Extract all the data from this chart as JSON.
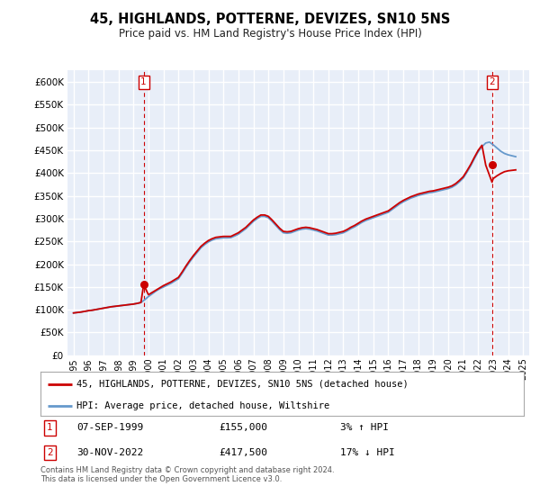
{
  "title": "45, HIGHLANDS, POTTERNE, DEVIZES, SN10 5NS",
  "subtitle": "Price paid vs. HM Land Registry's House Price Index (HPI)",
  "ylabel_ticks": [
    "£0",
    "£50K",
    "£100K",
    "£150K",
    "£200K",
    "£250K",
    "£300K",
    "£350K",
    "£400K",
    "£450K",
    "£500K",
    "£550K",
    "£600K"
  ],
  "ytick_values": [
    0,
    50000,
    100000,
    150000,
    200000,
    250000,
    300000,
    350000,
    400000,
    450000,
    500000,
    550000,
    600000
  ],
  "ylim": [
    0,
    625000
  ],
  "legend_label_red": "45, HIGHLANDS, POTTERNE, DEVIZES, SN10 5NS (detached house)",
  "legend_label_blue": "HPI: Average price, detached house, Wiltshire",
  "annotation1_label": "1",
  "annotation1_date": "07-SEP-1999",
  "annotation1_price": "£155,000",
  "annotation1_hpi": "3% ↑ HPI",
  "annotation2_label": "2",
  "annotation2_date": "30-NOV-2022",
  "annotation2_price": "£417,500",
  "annotation2_hpi": "17% ↓ HPI",
  "footer": "Contains HM Land Registry data © Crown copyright and database right 2024.\nThis data is licensed under the Open Government Licence v3.0.",
  "red_color": "#cc0000",
  "blue_color": "#6699cc",
  "bg_color": "#e8eef8",
  "grid_color": "#ffffff",
  "marker1_x": 1999.68,
  "marker1_y": 155000,
  "marker2_x": 2022.92,
  "marker2_y": 417500,
  "vline1_x": 1999.68,
  "vline2_x": 2022.92,
  "xlim_left": 1994.6,
  "xlim_right": 2025.4,
  "hpi_years": [
    1995.0,
    1995.25,
    1995.5,
    1995.75,
    1996.0,
    1996.25,
    1996.5,
    1996.75,
    1997.0,
    1997.25,
    1997.5,
    1997.75,
    1998.0,
    1998.25,
    1998.5,
    1998.75,
    1999.0,
    1999.25,
    1999.5,
    1999.75,
    2000.0,
    2000.25,
    2000.5,
    2000.75,
    2001.0,
    2001.25,
    2001.5,
    2001.75,
    2002.0,
    2002.25,
    2002.5,
    2002.75,
    2003.0,
    2003.25,
    2003.5,
    2003.75,
    2004.0,
    2004.25,
    2004.5,
    2004.75,
    2005.0,
    2005.25,
    2005.5,
    2005.75,
    2006.0,
    2006.25,
    2006.5,
    2006.75,
    2007.0,
    2007.25,
    2007.5,
    2007.75,
    2008.0,
    2008.25,
    2008.5,
    2008.75,
    2009.0,
    2009.25,
    2009.5,
    2009.75,
    2010.0,
    2010.25,
    2010.5,
    2010.75,
    2011.0,
    2011.25,
    2011.5,
    2011.75,
    2012.0,
    2012.25,
    2012.5,
    2012.75,
    2013.0,
    2013.25,
    2013.5,
    2013.75,
    2014.0,
    2014.25,
    2014.5,
    2014.75,
    2015.0,
    2015.25,
    2015.5,
    2015.75,
    2016.0,
    2016.25,
    2016.5,
    2016.75,
    2017.0,
    2017.25,
    2017.5,
    2017.75,
    2018.0,
    2018.25,
    2018.5,
    2018.75,
    2019.0,
    2019.25,
    2019.5,
    2019.75,
    2020.0,
    2020.25,
    2020.5,
    2020.75,
    2021.0,
    2021.25,
    2021.5,
    2021.75,
    2022.0,
    2022.25,
    2022.5,
    2022.75,
    2023.0,
    2023.25,
    2023.5,
    2023.75,
    2024.0,
    2024.25,
    2024.5
  ],
  "hpi_values": [
    93000,
    94000,
    95000,
    96500,
    98000,
    99000,
    100500,
    102000,
    103500,
    105000,
    106500,
    107500,
    108500,
    109500,
    110500,
    111500,
    112500,
    114000,
    116000,
    122000,
    129000,
    135000,
    141000,
    146000,
    150000,
    154000,
    158000,
    163000,
    168000,
    180000,
    193000,
    205000,
    216000,
    226000,
    236000,
    243000,
    249000,
    253000,
    256000,
    257000,
    258000,
    258000,
    258500,
    262000,
    266000,
    272000,
    278000,
    286000,
    294000,
    300000,
    305000,
    305000,
    302000,
    294000,
    285000,
    276000,
    269000,
    268000,
    269000,
    272000,
    275000,
    277000,
    278000,
    277000,
    275000,
    273000,
    270000,
    267000,
    264000,
    264000,
    265000,
    267000,
    269000,
    273000,
    278000,
    282000,
    287000,
    292000,
    296000,
    299000,
    302000,
    305000,
    308000,
    311000,
    314000,
    320000,
    326000,
    332000,
    337000,
    341000,
    345000,
    348000,
    351000,
    353000,
    355000,
    357000,
    358000,
    360000,
    362000,
    364000,
    366000,
    369000,
    374000,
    381000,
    389000,
    402000,
    416000,
    432000,
    447000,
    458000,
    466000,
    468000,
    462000,
    455000,
    448000,
    443000,
    440000,
    438000,
    436000
  ],
  "red_years": [
    1995.0,
    1995.25,
    1995.5,
    1995.75,
    1996.0,
    1996.25,
    1996.5,
    1996.75,
    1997.0,
    1997.25,
    1997.5,
    1997.75,
    1998.0,
    1998.25,
    1998.5,
    1998.75,
    1999.0,
    1999.25,
    1999.5,
    1999.68,
    2000.0,
    2000.25,
    2000.5,
    2000.75,
    2001.0,
    2001.25,
    2001.5,
    2001.75,
    2002.0,
    2002.25,
    2002.5,
    2002.75,
    2003.0,
    2003.25,
    2003.5,
    2003.75,
    2004.0,
    2004.25,
    2004.5,
    2004.75,
    2005.0,
    2005.25,
    2005.5,
    2005.75,
    2006.0,
    2006.25,
    2006.5,
    2006.75,
    2007.0,
    2007.25,
    2007.5,
    2007.75,
    2008.0,
    2008.25,
    2008.5,
    2008.75,
    2009.0,
    2009.25,
    2009.5,
    2009.75,
    2010.0,
    2010.25,
    2010.5,
    2010.75,
    2011.0,
    2011.25,
    2011.5,
    2011.75,
    2012.0,
    2012.25,
    2012.5,
    2012.75,
    2013.0,
    2013.25,
    2013.5,
    2013.75,
    2014.0,
    2014.25,
    2014.5,
    2014.75,
    2015.0,
    2015.25,
    2015.5,
    2015.75,
    2016.0,
    2016.25,
    2016.5,
    2016.75,
    2017.0,
    2017.25,
    2017.5,
    2017.75,
    2018.0,
    2018.25,
    2018.5,
    2018.75,
    2019.0,
    2019.25,
    2019.5,
    2019.75,
    2020.0,
    2020.25,
    2020.5,
    2020.75,
    2021.0,
    2021.25,
    2021.5,
    2021.75,
    2022.0,
    2022.25,
    2022.5,
    2022.92,
    2023.0,
    2023.25,
    2023.5,
    2023.75,
    2024.0,
    2024.25,
    2024.5
  ],
  "red_values": [
    93000,
    94000,
    95000,
    96500,
    98000,
    99000,
    100500,
    102000,
    103500,
    105000,
    106500,
    107500,
    108500,
    109500,
    110500,
    111500,
    112500,
    114000,
    116000,
    155000,
    133000,
    138000,
    143000,
    148000,
    153000,
    157000,
    161000,
    166000,
    171000,
    183000,
    196000,
    208000,
    219000,
    229000,
    239000,
    246000,
    252000,
    256000,
    259000,
    260000,
    261000,
    261000,
    261000,
    265000,
    269000,
    275000,
    281000,
    289000,
    297000,
    303000,
    308000,
    308000,
    305000,
    297000,
    288000,
    279000,
    272000,
    271000,
    272000,
    275000,
    278000,
    280000,
    281000,
    280000,
    278000,
    276000,
    273000,
    270000,
    267000,
    267000,
    268000,
    270000,
    272000,
    276000,
    281000,
    285000,
    290000,
    295000,
    299000,
    302000,
    305000,
    308000,
    311000,
    314000,
    317000,
    323000,
    329000,
    335000,
    340000,
    344000,
    348000,
    351000,
    354000,
    356000,
    358000,
    360000,
    361000,
    363000,
    365000,
    367000,
    369000,
    372000,
    377000,
    384000,
    392000,
    405000,
    419000,
    435000,
    450000,
    461000,
    417500,
    380000,
    388000,
    394000,
    399000,
    403000,
    405000,
    406000,
    407000
  ]
}
